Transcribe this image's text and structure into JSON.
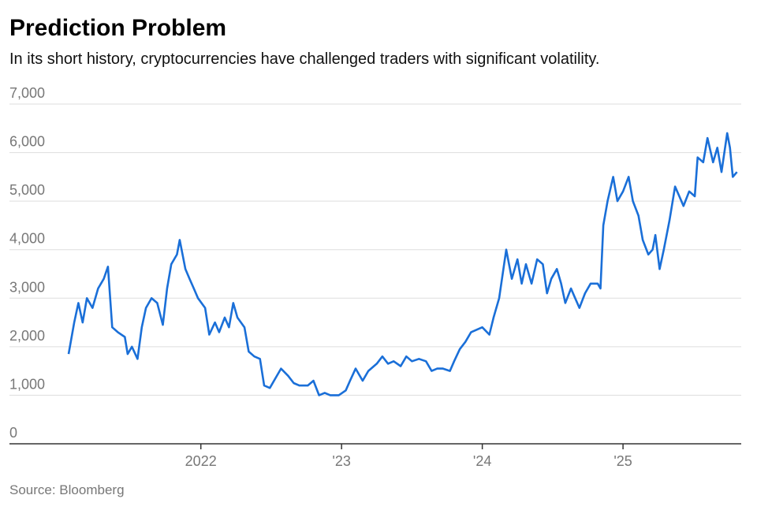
{
  "chart_data": {
    "type": "line",
    "title": "Prediction Problem",
    "subtitle": "In its short history, cryptocurrencies have challenged traders with significant volatility.",
    "source": "Source: Bloomberg",
    "color": "#1a6fd8",
    "grid": true,
    "xlim": [
      2020.64,
      2025.84
    ],
    "ylim": [
      0,
      7000
    ],
    "yticks": [
      0,
      {
        "value": 1000,
        "label": "1,000"
      },
      {
        "value": 2000,
        "label": "2,000"
      },
      {
        "value": 3000,
        "label": "3,000"
      },
      {
        "value": 4000,
        "label": "4,000"
      },
      {
        "value": 5000,
        "label": "5,000"
      },
      {
        "value": 6000,
        "label": "6,000"
      },
      {
        "value": 7000,
        "label": "7,000"
      }
    ],
    "xticks": [
      2022,
      {
        "value": 2023,
        "label": "'23"
      },
      {
        "value": 2024,
        "label": "'24"
      },
      {
        "value": 2025,
        "label": "'25"
      }
    ],
    "x": [
      2021.06,
      2021.1,
      2021.13,
      2021.16,
      2021.19,
      2021.23,
      2021.27,
      2021.31,
      2021.34,
      2021.37,
      2021.41,
      2021.46,
      2021.48,
      2021.51,
      2021.55,
      2021.58,
      2021.61,
      2021.65,
      2021.69,
      2021.73,
      2021.76,
      2021.79,
      2021.83,
      2021.85,
      2021.89,
      2021.92,
      2021.95,
      2021.98,
      2022.03,
      2022.06,
      2022.1,
      2022.13,
      2022.17,
      2022.2,
      2022.23,
      2022.26,
      2022.31,
      2022.34,
      2022.38,
      2022.42,
      2022.45,
      2022.49,
      2022.53,
      2022.57,
      2022.62,
      2022.66,
      2022.7,
      2022.76,
      2022.8,
      2022.84,
      2022.88,
      2022.92,
      2022.98,
      2023.03,
      2023.06,
      2023.1,
      2023.15,
      2023.19,
      2023.25,
      2023.29,
      2023.33,
      2023.37,
      2023.42,
      2023.46,
      2023.5,
      2023.55,
      2023.6,
      2023.64,
      2023.68,
      2023.72,
      2023.77,
      2023.8,
      2023.84,
      2023.88,
      2023.92,
      2023.96,
      2024.0,
      2024.05,
      2024.08,
      2024.12,
      2024.15,
      2024.17,
      2024.21,
      2024.25,
      2024.28,
      2024.31,
      2024.35,
      2024.39,
      2024.43,
      2024.46,
      2024.49,
      2024.53,
      2024.56,
      2024.59,
      2024.63,
      2024.66,
      2024.69,
      2024.73,
      2024.77,
      2024.82,
      2024.84,
      2024.86,
      2024.89,
      2024.93,
      2024.96,
      2025.0,
      2025.04,
      2025.07,
      2025.11,
      2025.14,
      2025.18,
      2025.21,
      2025.23,
      2025.26,
      2025.29,
      2025.33,
      2025.37,
      2025.4,
      2025.43,
      2025.47,
      2025.51,
      2025.53,
      2025.57,
      2025.6,
      2025.64,
      2025.67,
      2025.7,
      2025.74,
      2025.76,
      2025.78,
      2025.81
    ],
    "values": [
      1850,
      2500,
      2900,
      2500,
      3000,
      2800,
      3200,
      3400,
      3650,
      2400,
      2300,
      2200,
      1850,
      2000,
      1750,
      2400,
      2800,
      3000,
      2900,
      2450,
      3200,
      3700,
      3900,
      4200,
      3600,
      3400,
      3200,
      3000,
      2800,
      2250,
      2500,
      2300,
      2600,
      2400,
      2900,
      2600,
      2400,
      1900,
      1800,
      1750,
      1200,
      1150,
      1350,
      1550,
      1400,
      1250,
      1200,
      1200,
      1300,
      1000,
      1050,
      1000,
      1000,
      1100,
      1300,
      1550,
      1300,
      1500,
      1650,
      1800,
      1650,
      1700,
      1600,
      1800,
      1700,
      1750,
      1700,
      1500,
      1550,
      1550,
      1500,
      1700,
      1950,
      2100,
      2300,
      2350,
      2400,
      2250,
      2600,
      3000,
      3600,
      4000,
      3400,
      3800,
      3300,
      3700,
      3300,
      3800,
      3700,
      3100,
      3400,
      3600,
      3300,
      2900,
      3200,
      3000,
      2800,
      3100,
      3300,
      3300,
      3200,
      4500,
      5000,
      5500,
      5000,
      5200,
      5500,
      5000,
      4700,
      4200,
      3900,
      4000,
      4300,
      3600,
      4000,
      4600,
      5300,
      5100,
      4900,
      5200,
      5100,
      5900,
      5800,
      6300,
      5800,
      6100,
      5600,
      6400,
      6100,
      5500,
      5600
    ]
  }
}
